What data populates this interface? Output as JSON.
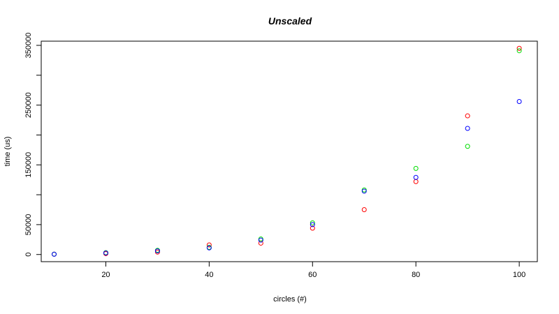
{
  "chart_data": {
    "type": "scatter",
    "title": "Unscaled",
    "xlabel": "circles (#)",
    "ylabel": "time (us)",
    "xlim": [
      7.5,
      103.5
    ],
    "ylim": [
      -12000,
      357000
    ],
    "x_ticks": [
      20,
      40,
      60,
      80,
      100
    ],
    "y_ticks": [
      0,
      50000,
      150000,
      250000,
      350000
    ],
    "y_minor_ticks": [
      100000,
      200000,
      300000
    ],
    "grid": false,
    "legend": "none",
    "series": [
      {
        "color": "#ff0000",
        "x": [
          10,
          20,
          30,
          40,
          50,
          60,
          70,
          80,
          90,
          100
        ],
        "y": [
          500,
          1500,
          4000,
          16000,
          19000,
          44000,
          75000,
          122000,
          232000,
          345000
        ]
      },
      {
        "color": "#00dd00",
        "x": [
          10,
          20,
          30,
          40,
          50,
          60,
          70,
          80,
          90,
          100
        ],
        "y": [
          600,
          3000,
          7000,
          12000,
          26000,
          53000,
          108000,
          144000,
          181000,
          341000
        ]
      },
      {
        "color": "#0000ff",
        "x": [
          10,
          20,
          30,
          40,
          50,
          60,
          70,
          80,
          90,
          100
        ],
        "y": [
          400,
          2500,
          6000,
          11000,
          24000,
          50000,
          106000,
          129000,
          211000,
          256000
        ]
      }
    ]
  }
}
